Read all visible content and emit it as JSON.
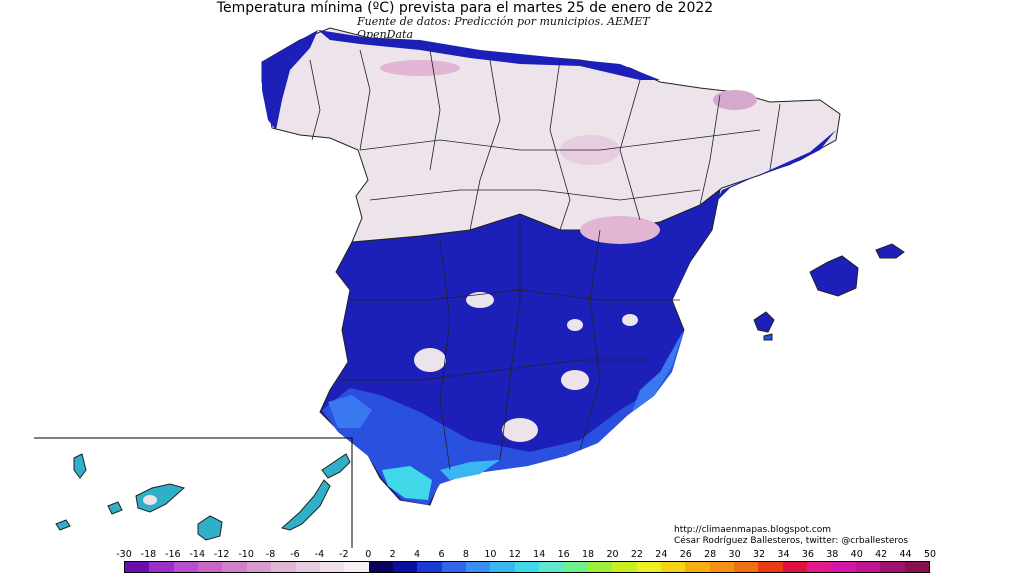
{
  "title": "Temperatura mínima (ºC) prevista para el martes 25 de enero de 2022",
  "subtitle": "Fuente de datos: Predicción por municipios. AEMET OpenData",
  "credits": {
    "line1": "http://climaenmapas.blogspot.com",
    "line2": "César Rodríguez Ballesteros, twitter: @crballesteros"
  },
  "legend": {
    "ticks": [
      "-30",
      "-18",
      "-16",
      "-14",
      "-12",
      "-10",
      "-8",
      "-6",
      "-4",
      "-2",
      "0",
      "2",
      "4",
      "6",
      "8",
      "10",
      "12",
      "14",
      "16",
      "18",
      "20",
      "22",
      "24",
      "26",
      "28",
      "30",
      "32",
      "34",
      "36",
      "38",
      "40",
      "42",
      "44",
      "50"
    ],
    "colors": [
      "#6a0dad",
      "#9b2fc7",
      "#b84fd0",
      "#c766c7",
      "#d17fcb",
      "#d99bcc",
      "#e1b5d3",
      "#e8cce0",
      "#efdfea",
      "#f6f0f4",
      "#08035e",
      "#0a0fa0",
      "#1a3ad8",
      "#2f66ec",
      "#3a8ff2",
      "#3ab7f2",
      "#40d7e8",
      "#5fe5d0",
      "#6ef08a",
      "#9af03c",
      "#c8f020",
      "#f0f020",
      "#f5d418",
      "#f5b010",
      "#f59010",
      "#f07010",
      "#ea3a10",
      "#e01040",
      "#e21a8a",
      "#d414a8",
      "#bd1592",
      "#a01070",
      "#87104d"
    ]
  },
  "map": {
    "regions": "Península Ibérica, Islas Baleares, Islas Canarias",
    "colors": {
      "cold_land": "#ece4ea",
      "coldest_land": "#d6a8ce",
      "deep_blue": "#1c20b8",
      "mid_blue": "#2a50e0",
      "light_blue": "#3a78ef",
      "cyan": "#40d7e8",
      "border": "#202020"
    }
  }
}
